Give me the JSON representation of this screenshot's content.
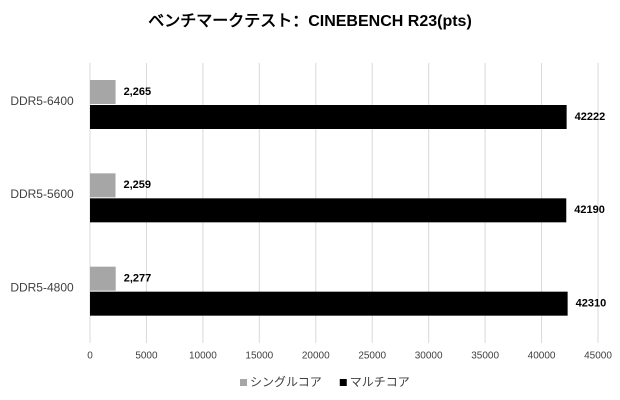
{
  "chart_data": {
    "type": "bar",
    "orientation": "horizontal",
    "title": "ベンチマークテスト：CINEBENCH R23(pts)",
    "categories": [
      "DDR5-6400",
      "DDR5-5600",
      "DDR5-4800"
    ],
    "series": [
      {
        "name": "シングルコア",
        "color": "#a6a6a6",
        "values": [
          2265,
          2259,
          2277
        ],
        "value_labels": [
          "2,265",
          "2,259",
          "2,277"
        ]
      },
      {
        "name": "マルチコア",
        "color": "#000000",
        "values": [
          42222,
          42190,
          42310
        ]
      }
    ],
    "xlim": [
      0,
      45000
    ],
    "xticks": [
      0,
      5000,
      10000,
      15000,
      20000,
      25000,
      30000,
      35000,
      40000,
      45000
    ],
    "grid": true,
    "legend": "bottom"
  }
}
